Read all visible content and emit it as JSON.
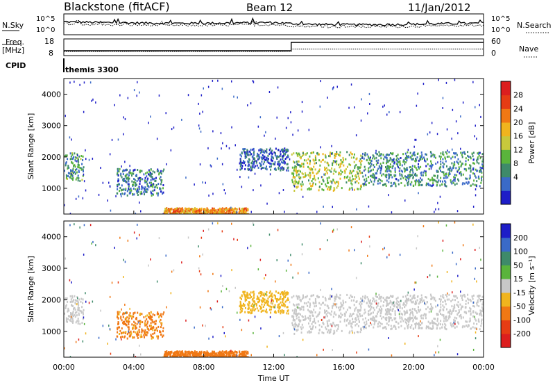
{
  "header": {
    "station": "Blackstone (fitACF)",
    "beam": "Beam 12",
    "date": "11/Jan/2012"
  },
  "top_panels": {
    "nsky_label": "N.Sky",
    "nsearch_label": "N.Search",
    "noise_ticks": [
      "10^5",
      "10^0"
    ],
    "freq_label": "Freq.",
    "freq_unit": "[MHz]",
    "freq_ticks": [
      "18",
      "8"
    ],
    "nave_label": "Nave",
    "nave_ticks": [
      "60",
      "0"
    ],
    "cpid_label": "CPID",
    "cpid_value": "themis 3300"
  },
  "axes": {
    "xlabel": "Time UT",
    "xticks": [
      "00:00",
      "04:00",
      "08:00",
      "12:00",
      "16:00",
      "20:00",
      "00:00"
    ],
    "ylabel": "Slant Range [km]",
    "yticks": [
      "1000",
      "2000",
      "3000",
      "4000"
    ],
    "power_label": "Power [dB]",
    "power_ticks": [
      "28",
      "24",
      "20",
      "16",
      "12",
      "8",
      "4"
    ],
    "velocity_label": "Velocity [m s⁻¹]",
    "velocity_ticks": [
      "200",
      "100",
      "50",
      "15",
      "-15",
      "-50",
      "-100",
      "-200"
    ]
  },
  "chart_data": [
    {
      "type": "line",
      "title": "N.Sky / N.Search",
      "x_hours": [
        0,
        2,
        4,
        6,
        8,
        10,
        12,
        13,
        14,
        16,
        18,
        20,
        22,
        24
      ],
      "series": [
        {
          "name": "N.Sky",
          "values_log10": [
            3.2,
            3.0,
            2.9,
            2.8,
            2.8,
            2.9,
            3.0,
            2.7,
            2.5,
            2.4,
            2.4,
            2.5,
            2.7,
            2.8
          ]
        },
        {
          "name": "N.Search",
          "values_log10": [
            2.6,
            2.4,
            2.3,
            2.2,
            2.2,
            2.3,
            2.4,
            2.1,
            1.9,
            1.8,
            1.8,
            1.9,
            2.1,
            2.2
          ]
        }
      ],
      "ylim": [
        0,
        5
      ]
    },
    {
      "type": "line",
      "title": "Freq. / Nave",
      "x_hours": [
        0,
        13.0,
        13.0,
        24
      ],
      "series": [
        {
          "name": "Freq.",
          "values": [
            10.5,
            10.5,
            16.5,
            16.5
          ],
          "ylim": [
            8,
            18
          ]
        },
        {
          "name": "Nave",
          "values": [
            12,
            12,
            22,
            22
          ],
          "ylim": [
            0,
            60
          ]
        }
      ]
    },
    {
      "type": "heatmap",
      "title": "Power [dB]",
      "xlabel": "Time UT",
      "ylabel": "Slant Range [km]",
      "xlim_hours": [
        0,
        24
      ],
      "ylim_km": [
        180,
        4500
      ],
      "colorbar": {
        "range": [
          0,
          30
        ],
        "ticks": [
          4,
          8,
          12,
          16,
          20,
          24,
          28
        ]
      },
      "colors": [
        "#1e1ec8",
        "#3a6ac8",
        "#3e8a6a",
        "#5ab43c",
        "#c8c83c",
        "#f0b41e",
        "#f07814",
        "#e63c14",
        "#dc1e1e"
      ],
      "regions": [
        {
          "t": [
            0.0,
            1.1
          ],
          "range_km": [
            1250,
            2150
          ],
          "power_db": 9
        },
        {
          "t": [
            3.0,
            5.7
          ],
          "range_km": [
            800,
            1650
          ],
          "power_db": 7
        },
        {
          "t": [
            5.7,
            10.5
          ],
          "range_km": [
            200,
            400
          ],
          "power_db": 20
        },
        {
          "t": [
            10.0,
            12.8
          ],
          "range_km": [
            1600,
            2300
          ],
          "power_db": 5
        },
        {
          "t": [
            13.0,
            17.0
          ],
          "range_km": [
            950,
            2200
          ],
          "power_db": 14
        },
        {
          "t": [
            17.0,
            24.0
          ],
          "range_km": [
            1100,
            2200
          ],
          "power_db": 8
        }
      ]
    },
    {
      "type": "heatmap",
      "title": "Velocity [m s⁻¹]",
      "xlabel": "Time UT",
      "ylabel": "Slant Range [km]",
      "xlim_hours": [
        0,
        24
      ],
      "ylim_km": [
        180,
        4500
      ],
      "colorbar": {
        "range": [
          -250,
          250
        ],
        "ticks": [
          200,
          100,
          50,
          15,
          -15,
          -50,
          -100,
          -200
        ]
      },
      "colors": [
        "#1e1ec8",
        "#3a6ac8",
        "#3e8a6a",
        "#5ab43c",
        "#c8c8c8",
        "#f0b41e",
        "#f07814",
        "#e63c14",
        "#dc1e1e"
      ],
      "regions": [
        {
          "t": [
            0.0,
            1.1
          ],
          "range_km": [
            1250,
            2150
          ],
          "velocity": 0
        },
        {
          "t": [
            3.0,
            5.7
          ],
          "range_km": [
            800,
            1650
          ],
          "velocity": -60
        },
        {
          "t": [
            5.7,
            10.5
          ],
          "range_km": [
            200,
            400
          ],
          "velocity": -70
        },
        {
          "t": [
            10.0,
            12.8
          ],
          "range_km": [
            1600,
            2300
          ],
          "velocity": -30
        },
        {
          "t": [
            13.0,
            17.0
          ],
          "range_km": [
            950,
            2200
          ],
          "velocity": 0
        },
        {
          "t": [
            17.0,
            24.0
          ],
          "range_km": [
            1100,
            2200
          ],
          "velocity": 0
        }
      ]
    }
  ]
}
